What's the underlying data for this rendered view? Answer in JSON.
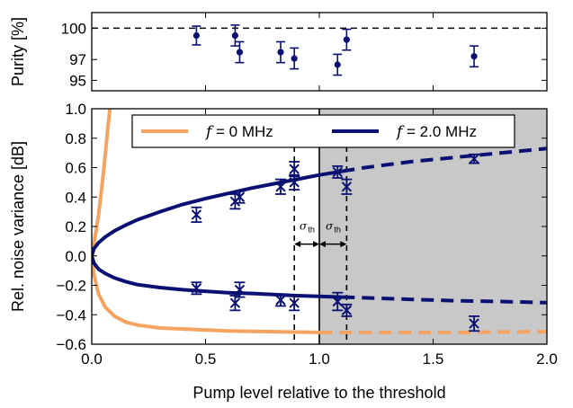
{
  "chart_data": [
    {
      "type": "scatter",
      "panel": "top",
      "ylabel": "Purity [%]",
      "xlim": [
        0.0,
        2.0
      ],
      "ylim": [
        94.0,
        101.5
      ],
      "yticks": [
        95,
        97,
        100
      ],
      "reference_line": 100,
      "points": [
        {
          "x": 0.46,
          "y": 99.3,
          "err": 0.9
        },
        {
          "x": 0.63,
          "y": 99.3,
          "err": 1.0
        },
        {
          "x": 0.65,
          "y": 97.7,
          "err": 1.0
        },
        {
          "x": 0.83,
          "y": 97.7,
          "err": 1.0
        },
        {
          "x": 0.89,
          "y": 97.1,
          "err": 1.0
        },
        {
          "x": 1.08,
          "y": 96.5,
          "err": 1.0
        },
        {
          "x": 1.12,
          "y": 98.9,
          "err": 1.0
        },
        {
          "x": 1.68,
          "y": 97.3,
          "err": 1.0
        }
      ]
    },
    {
      "type": "line",
      "panel": "bottom",
      "xlabel": "Pump level relative to the threshold",
      "ylabel": "Rel. noise variance [dB]",
      "xlim": [
        0.0,
        2.0
      ],
      "ylim": [
        -0.6,
        1.0
      ],
      "xticks": [
        "0.0",
        "0.5",
        "1.0",
        "1.5",
        "2.0"
      ],
      "yticks": [
        "−0.6",
        "−0.4",
        "−0.2",
        "0.0",
        "0.2",
        "0.4",
        "0.6",
        "0.8",
        "1.0"
      ],
      "shaded_region": [
        1.0,
        2.0
      ],
      "threshold": 1.0,
      "sigma_lines": [
        0.89,
        1.12
      ],
      "sigma_label": "σ",
      "sigma_sub": "th",
      "legend": {
        "location": "top",
        "entries": [
          {
            "label_pre": "f",
            "label_post": " = 0 MHz"
          },
          {
            "label_pre": "f",
            "label_post": " = 2.0 MHz"
          }
        ]
      },
      "series": [
        {
          "name": "f = 0 MHz",
          "color": "#F4A460",
          "upper_x": [
            0.0,
            0.01,
            0.02,
            0.03,
            0.04,
            0.05,
            0.06,
            0.07,
            0.08
          ],
          "upper_y": [
            0.0,
            0.09,
            0.18,
            0.28,
            0.41,
            0.55,
            0.7,
            0.86,
            1.0
          ],
          "lower_x": [
            0.0,
            0.01,
            0.03,
            0.06,
            0.1,
            0.15,
            0.2,
            0.3,
            0.45,
            0.6,
            0.8,
            1.0,
            1.3,
            1.6,
            2.0
          ],
          "lower_y": [
            0.0,
            -0.13,
            -0.26,
            -0.35,
            -0.41,
            -0.45,
            -0.47,
            -0.49,
            -0.5,
            -0.51,
            -0.515,
            -0.52,
            -0.52,
            -0.52,
            -0.515
          ]
        },
        {
          "name": "f = 2.0 MHz",
          "color": "#0A1172",
          "upper_x": [
            0.0,
            0.01,
            0.03,
            0.06,
            0.1,
            0.15,
            0.2,
            0.3,
            0.4,
            0.5,
            0.6,
            0.7,
            0.8,
            0.9,
            1.0,
            1.1,
            1.2,
            1.4,
            1.6,
            1.8,
            2.0
          ],
          "upper_y": [
            0.0,
            0.05,
            0.09,
            0.13,
            0.17,
            0.21,
            0.245,
            0.3,
            0.35,
            0.39,
            0.425,
            0.46,
            0.49,
            0.52,
            0.55,
            0.575,
            0.6,
            0.64,
            0.67,
            0.7,
            0.73
          ],
          "lower_x": [
            0.0,
            0.01,
            0.03,
            0.06,
            0.1,
            0.15,
            0.2,
            0.3,
            0.4,
            0.5,
            0.6,
            0.7,
            0.8,
            0.9,
            1.0,
            1.1,
            1.2,
            1.4,
            1.6,
            1.8,
            2.0
          ],
          "lower_y": [
            0.0,
            -0.05,
            -0.09,
            -0.12,
            -0.15,
            -0.175,
            -0.195,
            -0.215,
            -0.23,
            -0.24,
            -0.25,
            -0.255,
            -0.263,
            -0.27,
            -0.275,
            -0.28,
            -0.285,
            -0.295,
            -0.305,
            -0.31,
            -0.318
          ]
        }
      ],
      "data_points": [
        {
          "x": 0.46,
          "y": 0.28,
          "err": 0.05
        },
        {
          "x": 0.63,
          "y": 0.37,
          "err": 0.05
        },
        {
          "x": 0.65,
          "y": 0.4,
          "err": 0.04
        },
        {
          "x": 0.83,
          "y": 0.47,
          "err": 0.05
        },
        {
          "x": 0.89,
          "y": 0.5,
          "err": 0.05
        },
        {
          "x": 0.89,
          "y": 0.59,
          "err": 0.05
        },
        {
          "x": 1.08,
          "y": 0.57,
          "err": 0.04
        },
        {
          "x": 1.12,
          "y": 0.47,
          "err": 0.05
        },
        {
          "x": 1.68,
          "y": 0.66,
          "err": 0.03
        },
        {
          "x": 0.46,
          "y": -0.22,
          "err": 0.04
        },
        {
          "x": 0.63,
          "y": -0.32,
          "err": 0.05
        },
        {
          "x": 0.65,
          "y": -0.23,
          "err": 0.05
        },
        {
          "x": 0.83,
          "y": -0.3,
          "err": 0.04
        },
        {
          "x": 0.89,
          "y": -0.32,
          "err": 0.05
        },
        {
          "x": 1.08,
          "y": -0.31,
          "err": 0.06
        },
        {
          "x": 1.12,
          "y": -0.37,
          "err": 0.04
        },
        {
          "x": 1.68,
          "y": -0.46,
          "err": 0.05
        }
      ]
    }
  ]
}
